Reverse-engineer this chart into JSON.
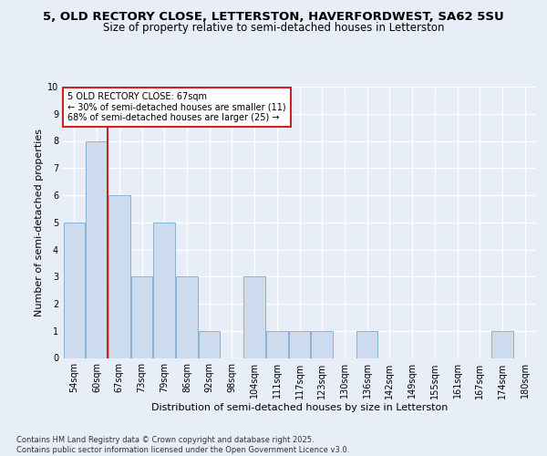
{
  "title1": "5, OLD RECTORY CLOSE, LETTERSTON, HAVERFORDWEST, SA62 5SU",
  "title2": "Size of property relative to semi-detached houses in Letterston",
  "xlabel": "Distribution of semi-detached houses by size in Letterston",
  "ylabel": "Number of semi-detached properties",
  "categories": [
    "54sqm",
    "60sqm",
    "67sqm",
    "73sqm",
    "79sqm",
    "86sqm",
    "92sqm",
    "98sqm",
    "104sqm",
    "111sqm",
    "117sqm",
    "123sqm",
    "130sqm",
    "136sqm",
    "142sqm",
    "149sqm",
    "155sqm",
    "161sqm",
    "167sqm",
    "174sqm",
    "180sqm"
  ],
  "values": [
    5,
    8,
    6,
    3,
    5,
    3,
    1,
    0,
    3,
    1,
    1,
    1,
    0,
    1,
    0,
    0,
    0,
    0,
    0,
    1,
    0
  ],
  "bar_color": "#ccdcee",
  "bar_edge_color": "#7aa8cc",
  "red_line_x": 1.5,
  "red_line_color": "#cc2222",
  "annotation_text": "5 OLD RECTORY CLOSE: 67sqm\n← 30% of semi-detached houses are smaller (11)\n68% of semi-detached houses are larger (25) →",
  "annotation_box_facecolor": "#ffffff",
  "annotation_box_edgecolor": "#cc2222",
  "footer_text": "Contains HM Land Registry data © Crown copyright and database right 2025.\nContains public sector information licensed under the Open Government Licence v3.0.",
  "ylim": [
    0,
    10
  ],
  "yticks": [
    0,
    1,
    2,
    3,
    4,
    5,
    6,
    7,
    8,
    9,
    10
  ],
  "bg_color": "#e8eef8",
  "grid_color": "#ffffff",
  "title_fontsize": 9.5,
  "subtitle_fontsize": 8.5,
  "axis_label_fontsize": 8,
  "tick_fontsize": 7,
  "annotation_fontsize": 7,
  "footer_fontsize": 6
}
